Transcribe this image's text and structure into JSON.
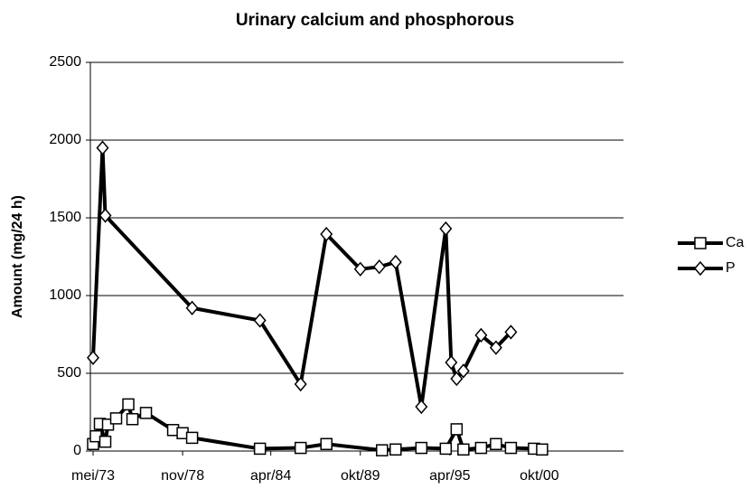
{
  "chart_data": {
    "type": "line",
    "title": "Urinary calcium and phosphorous",
    "y_label": "Amount (mg/24 h)",
    "xlim": [
      "1973-03",
      "2005-12"
    ],
    "xticks": [
      {
        "value": "1973-05",
        "label": "mei/73"
      },
      {
        "value": "1978-11",
        "label": "nov/78"
      },
      {
        "value": "1984-04",
        "label": "apr/84"
      },
      {
        "value": "1989-10",
        "label": "okt/89"
      },
      {
        "value": "1995-04",
        "label": "apr/95"
      },
      {
        "value": "2000-10",
        "label": "okt/00"
      }
    ],
    "ylim": [
      0,
      2500
    ],
    "yticks": [
      0,
      500,
      1000,
      1500,
      2000,
      2500
    ],
    "grid": true,
    "legend": "right",
    "series": [
      {
        "name": "Ca",
        "color": "#000000",
        "marker": "square",
        "x": [
          "1973-05",
          "1973-07",
          "1973-10",
          "1974-02",
          "1974-04",
          "1974-10",
          "1975-07",
          "1975-10",
          "1976-08",
          "1978-04",
          "1978-11",
          "1979-06",
          "1983-08",
          "1986-02",
          "1987-09",
          "1991-02",
          "1991-12",
          "1993-07",
          "1995-01",
          "1995-09",
          "1996-02",
          "1997-03",
          "1998-02",
          "1999-01",
          "2000-06",
          "2000-12"
        ],
        "values": [
          45,
          95,
          175,
          60,
          170,
          210,
          300,
          205,
          245,
          135,
          115,
          85,
          15,
          20,
          45,
          5,
          10,
          20,
          15,
          140,
          10,
          20,
          45,
          20,
          15,
          10
        ]
      },
      {
        "name": "P",
        "color": "#000000",
        "marker": "diamond",
        "x": [
          "1973-05",
          "1973-12",
          "1974-02",
          "1979-06",
          "1983-08",
          "1986-02",
          "1987-09",
          "1989-10",
          "1990-12",
          "1991-12",
          "1993-07",
          "1995-01",
          "1995-05",
          "1995-09",
          "1996-02",
          "1997-03",
          "1998-02",
          "1999-01"
        ],
        "values": [
          600,
          1950,
          1515,
          920,
          840,
          430,
          1395,
          1170,
          1185,
          1215,
          285,
          1430,
          570,
          465,
          515,
          745,
          665,
          765
        ]
      }
    ]
  }
}
